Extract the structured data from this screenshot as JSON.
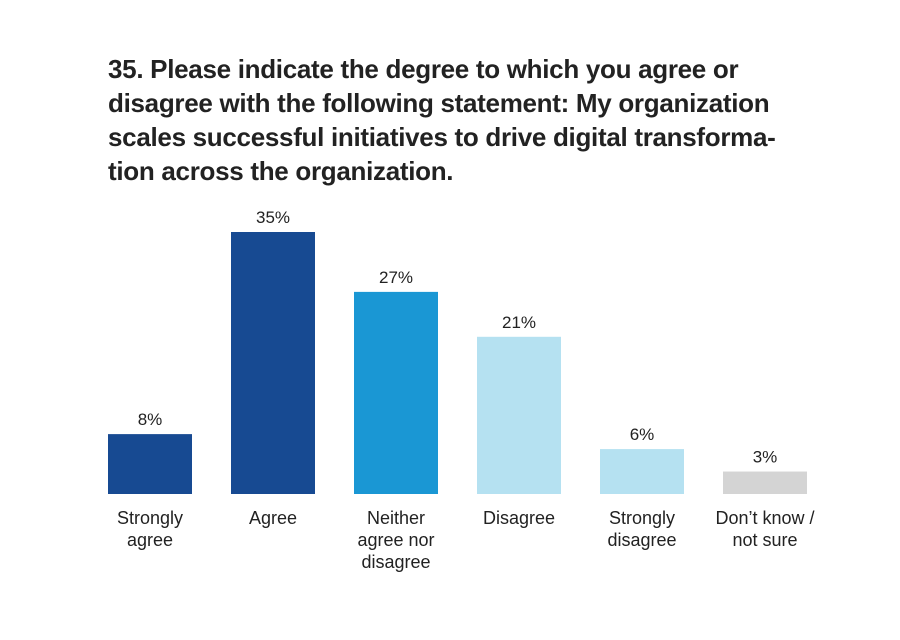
{
  "chart_data": {
    "type": "bar",
    "title_lines": [
      "35. Please indicate the degree to which you agree or",
      "disagree with the following statement: My organization",
      "scales successful initiatives to drive digital transforma-",
      "tion across the organization."
    ],
    "categories": [
      [
        "Strongly",
        "agree"
      ],
      [
        "Agree"
      ],
      [
        "Neither",
        "agree nor",
        "disagree"
      ],
      [
        "Disagree"
      ],
      [
        "Strongly",
        "disagree"
      ],
      [
        "Don’t know /",
        "not sure"
      ]
    ],
    "values": [
      8,
      35,
      27,
      21,
      6,
      3
    ],
    "data_labels": [
      "8%",
      "35%",
      "27%",
      "21%",
      "6%",
      "3%"
    ],
    "colors": [
      "#174a92",
      "#174a92",
      "#1a97d4",
      "#b5e1f1",
      "#b5e1f1",
      "#d4d4d4"
    ],
    "ylim": [
      0,
      35
    ],
    "grid": false,
    "legend": "none"
  }
}
